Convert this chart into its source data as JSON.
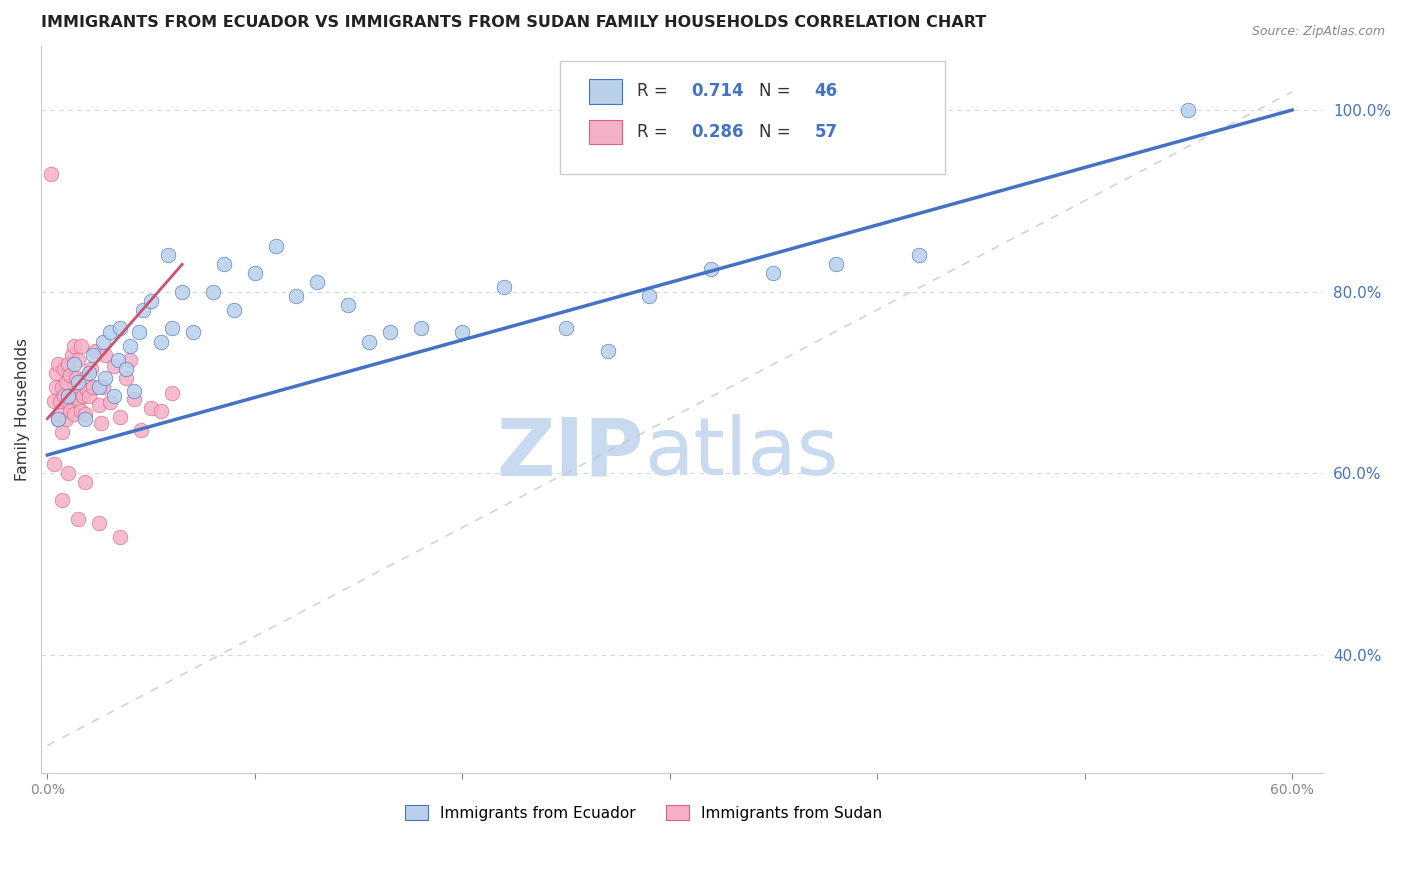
{
  "title": "IMMIGRANTS FROM ECUADOR VS IMMIGRANTS FROM SUDAN FAMILY HOUSEHOLDS CORRELATION CHART",
  "source": "Source: ZipAtlas.com",
  "ylabel": "Family Households",
  "xlim": [
    -0.003,
    0.615
  ],
  "ylim": [
    0.27,
    1.07
  ],
  "right_yticks": [
    0.4,
    0.6,
    0.8,
    1.0
  ],
  "right_yticklabels": [
    "40.0%",
    "60.0%",
    "80.0%",
    "100.0%"
  ],
  "xticks": [
    0.0,
    0.1,
    0.2,
    0.3,
    0.4,
    0.5,
    0.6
  ],
  "ecuador_R": "0.714",
  "ecuador_N": "46",
  "sudan_R": "0.286",
  "sudan_N": "57",
  "ecuador_label": "Immigrants from Ecuador",
  "sudan_label": "Immigrants from Sudan",
  "ecuador_face_color": "#b8d0ea",
  "ecuador_edge_color": "#4472c4",
  "ecuador_line_color": "#4472c4",
  "sudan_face_color": "#f4b0c8",
  "sudan_edge_color": "#e0607a",
  "sudan_line_color": "#d05070",
  "grid_color": "#d0d8e8",
  "ref_line_color": "#c8c8c8",
  "background_color": "#ffffff",
  "watermark_zip_color": "#c8daf0",
  "watermark_atlas_color": "#c8daf0",
  "right_tick_color": "#4472c4",
  "title_fontsize": 11.5,
  "ecuador_scatter_x": [
    0.005,
    0.01,
    0.013,
    0.015,
    0.018,
    0.02,
    0.022,
    0.025,
    0.027,
    0.028,
    0.03,
    0.032,
    0.034,
    0.035,
    0.038,
    0.04,
    0.042,
    0.044,
    0.046,
    0.05,
    0.055,
    0.058,
    0.06,
    0.065,
    0.07,
    0.08,
    0.085,
    0.09,
    0.1,
    0.11,
    0.12,
    0.13,
    0.145,
    0.155,
    0.165,
    0.18,
    0.2,
    0.22,
    0.25,
    0.27,
    0.29,
    0.32,
    0.35,
    0.38,
    0.42,
    0.55
  ],
  "ecuador_scatter_y": [
    0.66,
    0.685,
    0.72,
    0.7,
    0.66,
    0.71,
    0.73,
    0.695,
    0.745,
    0.705,
    0.755,
    0.685,
    0.725,
    0.76,
    0.715,
    0.74,
    0.69,
    0.755,
    0.78,
    0.79,
    0.745,
    0.84,
    0.76,
    0.8,
    0.755,
    0.8,
    0.83,
    0.78,
    0.82,
    0.85,
    0.795,
    0.81,
    0.785,
    0.745,
    0.755,
    0.76,
    0.755,
    0.805,
    0.76,
    0.735,
    0.795,
    0.825,
    0.82,
    0.83,
    0.84,
    1.0
  ],
  "sudan_scatter_x": [
    0.002,
    0.003,
    0.004,
    0.004,
    0.005,
    0.005,
    0.006,
    0.006,
    0.007,
    0.007,
    0.008,
    0.008,
    0.009,
    0.009,
    0.01,
    0.01,
    0.011,
    0.011,
    0.012,
    0.012,
    0.013,
    0.013,
    0.014,
    0.014,
    0.015,
    0.015,
    0.016,
    0.016,
    0.017,
    0.018,
    0.018,
    0.019,
    0.02,
    0.021,
    0.022,
    0.023,
    0.025,
    0.026,
    0.027,
    0.028,
    0.03,
    0.032,
    0.035,
    0.038,
    0.04,
    0.042,
    0.045,
    0.05,
    0.055,
    0.06,
    0.003,
    0.007,
    0.01,
    0.015,
    0.018,
    0.025,
    0.035
  ],
  "sudan_scatter_y": [
    0.93,
    0.68,
    0.695,
    0.71,
    0.66,
    0.72,
    0.665,
    0.68,
    0.645,
    0.695,
    0.685,
    0.715,
    0.66,
    0.7,
    0.68,
    0.72,
    0.668,
    0.708,
    0.685,
    0.73,
    0.665,
    0.74,
    0.685,
    0.705,
    0.682,
    0.725,
    0.668,
    0.74,
    0.685,
    0.705,
    0.665,
    0.692,
    0.685,
    0.715,
    0.695,
    0.735,
    0.675,
    0.655,
    0.695,
    0.73,
    0.678,
    0.718,
    0.662,
    0.705,
    0.725,
    0.682,
    0.648,
    0.672,
    0.668,
    0.688,
    0.61,
    0.57,
    0.6,
    0.55,
    0.59,
    0.545,
    0.53
  ],
  "sudan_trendline_x": [
    0.0,
    0.065
  ],
  "sudan_trendline_y": [
    0.66,
    0.83
  ],
  "ecuador_trendline_x": [
    0.0,
    0.6
  ],
  "ecuador_trendline_y": [
    0.62,
    1.0
  ]
}
